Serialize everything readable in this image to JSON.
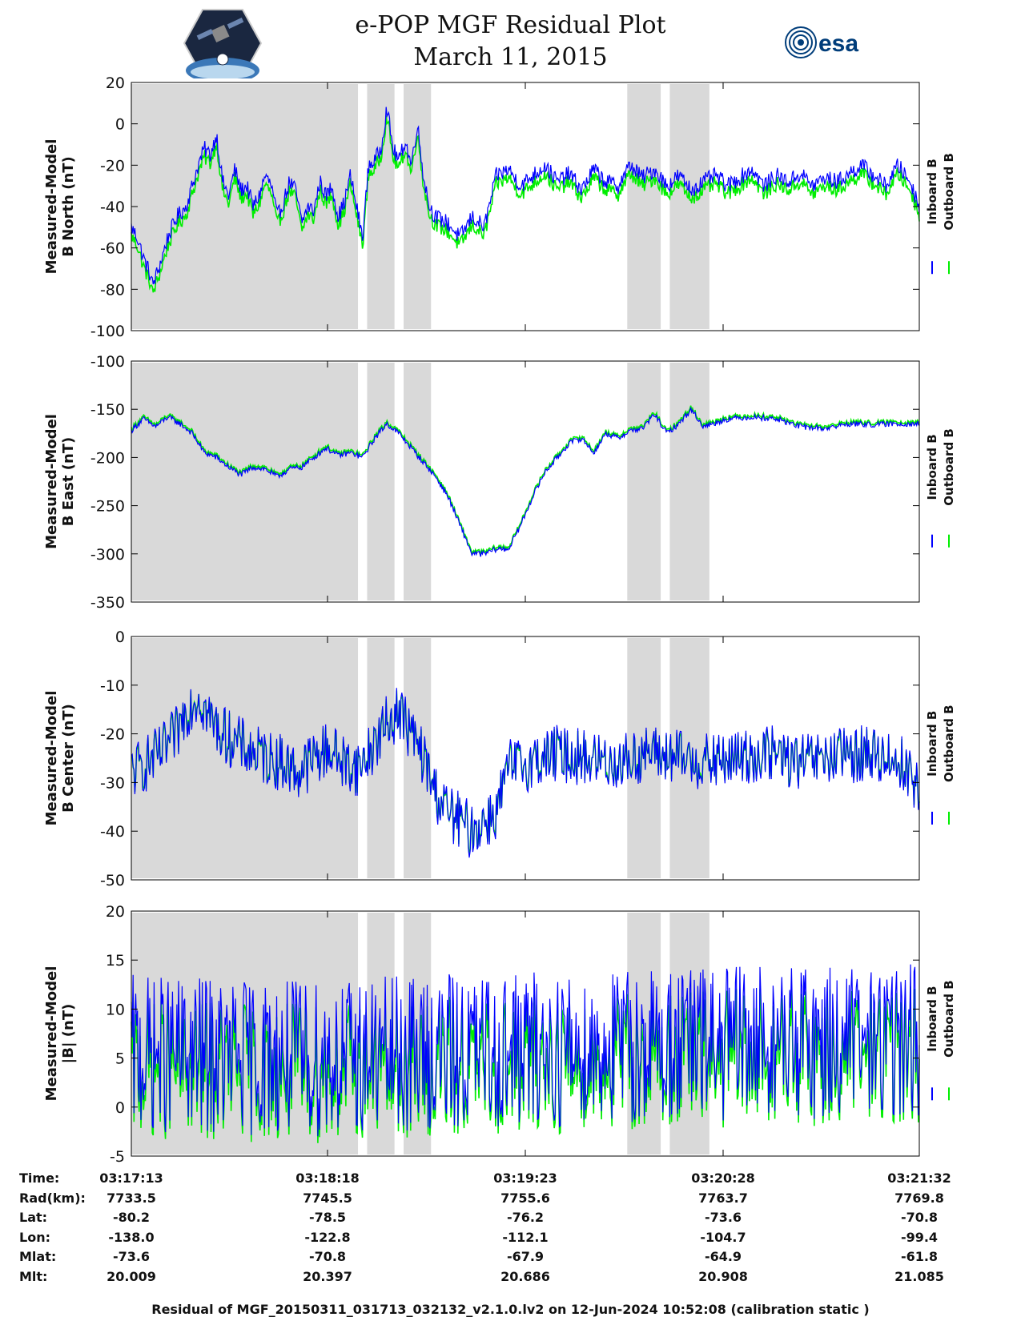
{
  "header": {
    "title_line1": "e-POP MGF Residual Plot",
    "title_line2": "March 11, 2015",
    "logo_left": "cassiope-satellite-logo",
    "logo_right": "esa-logo",
    "logo_right_text": "esa"
  },
  "colors": {
    "inboard": "#0000ff",
    "outboard": "#00ee00",
    "shade": "#d9d9d9",
    "axis": "#000000"
  },
  "chart_data": [
    {
      "type": "line",
      "ylabel_line1": "Measured-Model",
      "ylabel_line2": "B North (nT)",
      "ylim": [
        -100,
        20
      ],
      "yticks": [
        20,
        0,
        -20,
        -40,
        -60,
        -80,
        -100
      ],
      "xlim": [
        0,
        259
      ],
      "shaded_intervals": [
        [
          0,
          74.5
        ],
        [
          77.5,
          86.5
        ],
        [
          89.5,
          98.5
        ],
        [
          163,
          174
        ],
        [
          177,
          190
        ]
      ],
      "noise_amplitude": 4,
      "series": [
        {
          "name": "Inboard B",
          "color": "#0000ff",
          "x": [
            0,
            2,
            4,
            6,
            7,
            9,
            12,
            15,
            18,
            20,
            22,
            24,
            26,
            28,
            30,
            32,
            34,
            36,
            38,
            40,
            42,
            44,
            46,
            48,
            50,
            52,
            54,
            56,
            58,
            60,
            62,
            64,
            66,
            68,
            70,
            72,
            74,
            76,
            78,
            80,
            82,
            84,
            86,
            88,
            90,
            92,
            94,
            96,
            98,
            100,
            104,
            108,
            112,
            116,
            120,
            124,
            128,
            132,
            136,
            140,
            144,
            148,
            152,
            156,
            160,
            164,
            168,
            172,
            176,
            180,
            184,
            188,
            192,
            196,
            200,
            204,
            208,
            212,
            216,
            220,
            224,
            228,
            232,
            236,
            240,
            244,
            248,
            252,
            256,
            259
          ],
          "values": [
            -50,
            -55,
            -65,
            -72,
            -78,
            -70,
            -55,
            -45,
            -40,
            -30,
            -20,
            -12,
            -15,
            -5,
            -28,
            -35,
            -22,
            -32,
            -30,
            -40,
            -35,
            -25,
            -30,
            -45,
            -38,
            -28,
            -32,
            -48,
            -40,
            -42,
            -28,
            -35,
            -30,
            -45,
            -38,
            -25,
            -40,
            -55,
            -20,
            -18,
            -12,
            8,
            -12,
            -18,
            -8,
            -20,
            0,
            -25,
            -40,
            -45,
            -48,
            -55,
            -45,
            -50,
            -25,
            -22,
            -30,
            -25,
            -20,
            -28,
            -24,
            -32,
            -22,
            -28,
            -30,
            -20,
            -26,
            -22,
            -30,
            -25,
            -32,
            -28,
            -25,
            -30,
            -26,
            -22,
            -30,
            -25,
            -28,
            -24,
            -30,
            -26,
            -28,
            -24,
            -20,
            -25,
            -30,
            -20,
            -28,
            -40
          ]
        },
        {
          "name": "Outboard B",
          "color": "#00ee00",
          "offset": -4
        }
      ]
    },
    {
      "type": "line",
      "ylabel_line1": "Measured-Model",
      "ylabel_line2": "B East (nT)",
      "ylim": [
        -350,
        -100
      ],
      "yticks": [
        -100,
        -150,
        -200,
        -250,
        -300,
        -350
      ],
      "xlim": [
        0,
        259
      ],
      "shaded_intervals": [
        [
          0,
          74.5
        ],
        [
          77.5,
          86.5
        ],
        [
          89.5,
          98.5
        ],
        [
          163,
          174
        ],
        [
          177,
          190
        ]
      ],
      "noise_amplitude": 3,
      "series": [
        {
          "name": "Inboard B",
          "color": "#0000ff",
          "x": [
            0,
            4,
            8,
            12,
            16,
            20,
            24,
            28,
            32,
            36,
            40,
            44,
            48,
            52,
            56,
            60,
            64,
            68,
            72,
            76,
            80,
            84,
            88,
            92,
            96,
            100,
            104,
            108,
            112,
            116,
            120,
            124,
            128,
            132,
            136,
            140,
            144,
            148,
            152,
            156,
            160,
            164,
            168,
            172,
            176,
            180,
            184,
            188,
            196,
            204,
            212,
            220,
            228,
            236,
            244,
            252,
            259
          ],
          "values": [
            -172,
            -160,
            -168,
            -158,
            -165,
            -175,
            -195,
            -200,
            -210,
            -218,
            -210,
            -212,
            -220,
            -212,
            -210,
            -200,
            -190,
            -198,
            -195,
            -200,
            -180,
            -165,
            -175,
            -190,
            -205,
            -220,
            -240,
            -270,
            -300,
            -300,
            -295,
            -295,
            -270,
            -240,
            -215,
            -200,
            -185,
            -180,
            -195,
            -175,
            -180,
            -172,
            -170,
            -155,
            -175,
            -165,
            -150,
            -168,
            -160,
            -158,
            -160,
            -168,
            -170,
            -165,
            -166,
            -165,
            -165
          ]
        },
        {
          "name": "Outboard B",
          "color": "#00ee00",
          "offset": 2
        }
      ]
    },
    {
      "type": "line",
      "ylabel_line1": "Measured-Model",
      "ylabel_line2": "B Center (nT)",
      "ylim": [
        -50,
        0
      ],
      "yticks": [
        0,
        -10,
        -20,
        -30,
        -40,
        -50
      ],
      "xlim": [
        0,
        259
      ],
      "shaded_intervals": [
        [
          0,
          74.5
        ],
        [
          77.5,
          86.5
        ],
        [
          89.5,
          98.5
        ],
        [
          163,
          174
        ],
        [
          177,
          190
        ]
      ],
      "noise_amplitude": 6,
      "series": [
        {
          "name": "Inboard B",
          "color": "#0000ff",
          "x": [
            0,
            5,
            10,
            15,
            18,
            22,
            26,
            30,
            35,
            40,
            45,
            50,
            55,
            60,
            65,
            70,
            75,
            80,
            84,
            88,
            92,
            96,
            100,
            104,
            108,
            112,
            116,
            120,
            124,
            130,
            140,
            150,
            160,
            170,
            180,
            190,
            200,
            210,
            220,
            230,
            240,
            250,
            255,
            259
          ],
          "values": [
            -28,
            -26,
            -24,
            -20,
            -15,
            -12,
            -17,
            -20,
            -22,
            -24,
            -25,
            -26,
            -28,
            -25,
            -23,
            -26,
            -27,
            -22,
            -18,
            -15,
            -20,
            -25,
            -32,
            -36,
            -38,
            -40,
            -38,
            -36,
            -27,
            -26,
            -24,
            -25,
            -26,
            -24,
            -25,
            -26,
            -25,
            -24,
            -26,
            -25,
            -24,
            -25,
            -27,
            -32
          ]
        },
        {
          "name": "Outboard B",
          "color": "#00ee00",
          "offset": 0
        }
      ]
    },
    {
      "type": "line",
      "ylabel_line1": "Measured-Model",
      "ylabel_line2": "|B| (nT)",
      "ylim": [
        -5,
        20
      ],
      "yticks": [
        20,
        15,
        10,
        5,
        0,
        -5
      ],
      "xlim": [
        0,
        259
      ],
      "shaded_intervals": [
        [
          0,
          74.5
        ],
        [
          77.5,
          86.5
        ],
        [
          89.5,
          98.5
        ],
        [
          163,
          174
        ],
        [
          177,
          190
        ]
      ],
      "noise_amplitude": 8,
      "series": [
        {
          "name": "Inboard B",
          "color": "#0000ff",
          "x": [
            0,
            30,
            60,
            90,
            120,
            150,
            180,
            210,
            240,
            259
          ],
          "values": [
            5.5,
            5.2,
            5.0,
            5.4,
            5.8,
            6.0,
            6.5,
            6.6,
            6.8,
            7.0
          ]
        },
        {
          "name": "Outboard B",
          "color": "#00ee00",
          "offset": -1.5
        }
      ]
    }
  ],
  "legend": {
    "inboard": "Inboard B",
    "outboard": "Outboard B"
  },
  "ephemeris": {
    "labels": [
      "Time:",
      "Rad(km):",
      "Lat:",
      "Lon:",
      "Mlat:",
      "Mlt:"
    ],
    "columns": [
      [
        "03:17:13",
        "7733.5",
        "-80.2",
        "-138.0",
        "-73.6",
        "20.009"
      ],
      [
        "03:18:18",
        "7745.5",
        "-78.5",
        "-122.8",
        "-70.8",
        "20.397"
      ],
      [
        "03:19:23",
        "7755.6",
        "-76.2",
        "-112.1",
        "-67.9",
        "20.686"
      ],
      [
        "03:20:28",
        "7763.7",
        "-73.6",
        "-104.7",
        "-64.9",
        "20.908"
      ],
      [
        "03:21:32",
        "7769.8",
        "-70.8",
        "-99.4",
        "-61.8",
        "21.085"
      ]
    ]
  },
  "footer": "Residual of MGF_20150311_031713_032132_v2.1.0.lv2 on 12-Jun-2024 10:52:08 (calibration static )"
}
